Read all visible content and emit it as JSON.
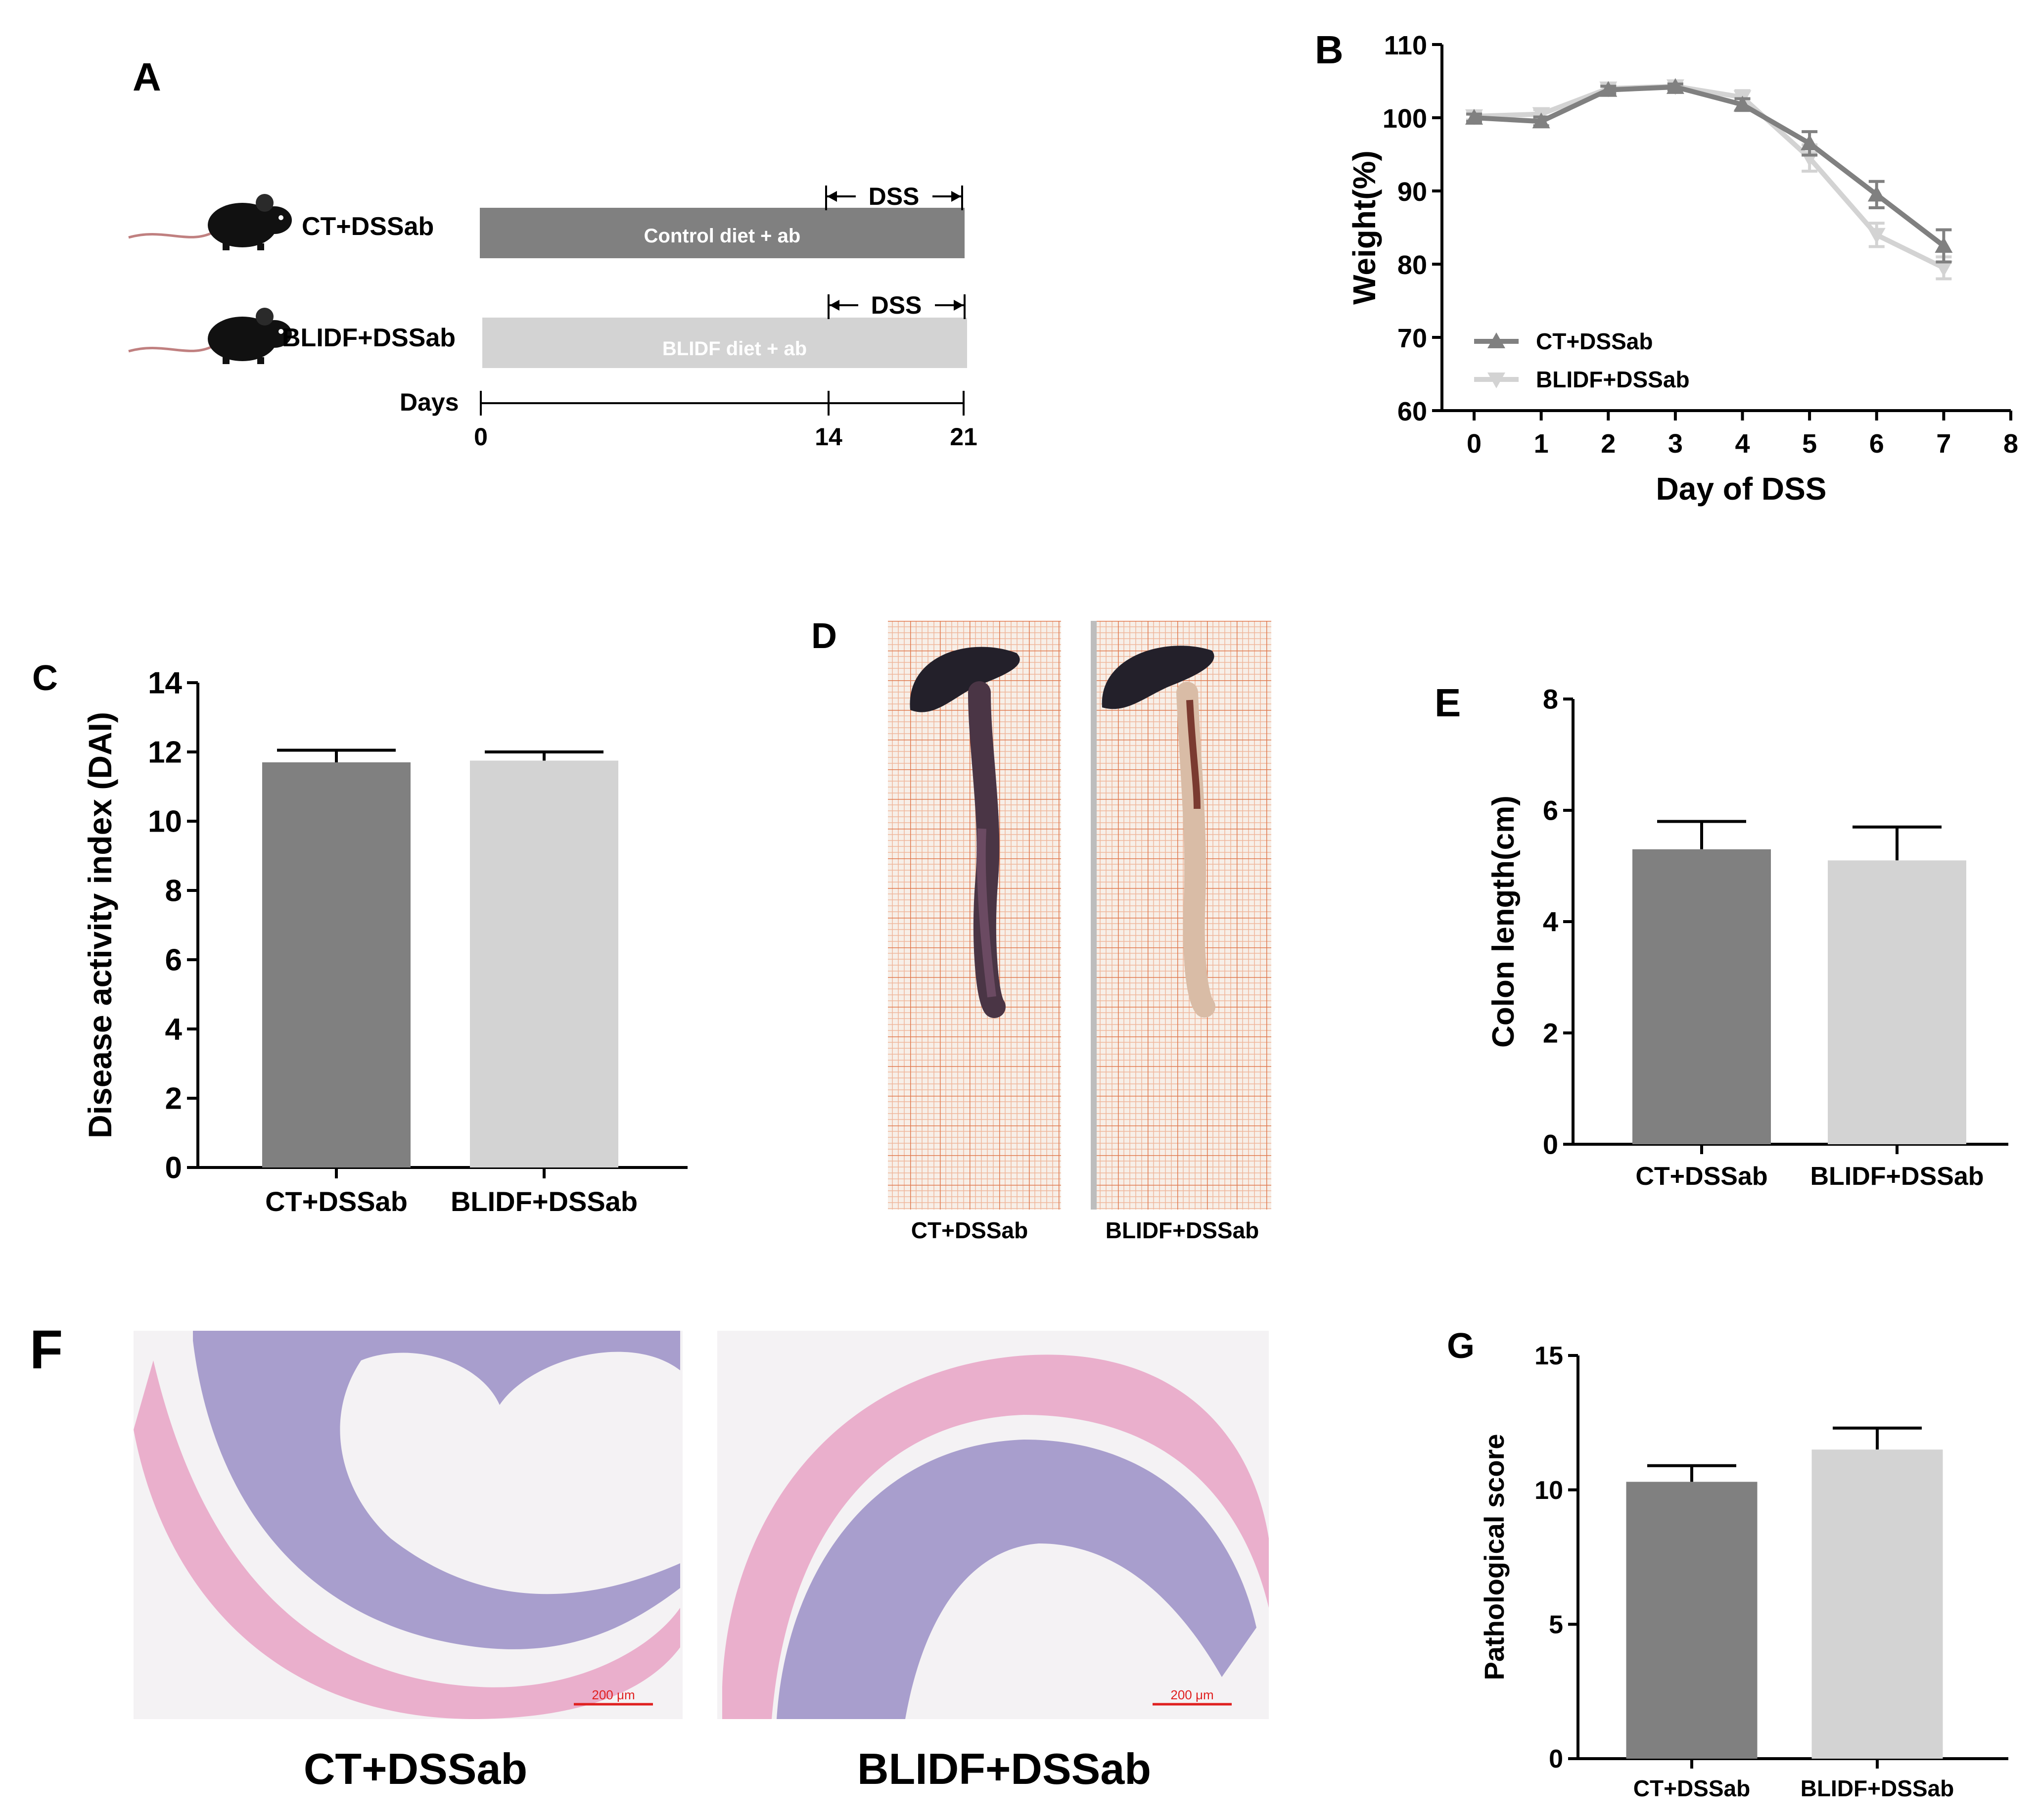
{
  "panels": {
    "A": "A",
    "B": "B",
    "C": "C",
    "D": "D",
    "E": "E",
    "F": "F",
    "G": "G"
  },
  "colors": {
    "dark": "#808080",
    "light": "#d3d3d3",
    "tissue_pink": "#e9a7c8",
    "tissue_purple": "#9a8fc6",
    "grid": "#e07a4f"
  },
  "timeline": {
    "groups": [
      {
        "name": "CT+DSSab",
        "bar_label": "Control diet + ab",
        "dss": "DSS"
      },
      {
        "name": "BLIDF+DSSab",
        "bar_label": "BLIDF diet + ab",
        "dss": "DSS"
      }
    ],
    "days_label": "Days",
    "ticks": [
      "0",
      "14",
      "21"
    ]
  },
  "photo_labels": [
    "CT+DSSab",
    "BLIDF+DSSab"
  ],
  "histology": {
    "labels": [
      "CT+DSSab",
      "BLIDF+DSSab"
    ],
    "scale_bar": "200 μm"
  },
  "chart_data": [
    {
      "panel": "B",
      "type": "line",
      "xlabel": "Day of DSS",
      "ylabel": "Weight(%)",
      "xlim": [
        0,
        8
      ],
      "ylim": [
        60,
        110
      ],
      "x": [
        0,
        1,
        2,
        3,
        4,
        5,
        6,
        7
      ],
      "xticks": [
        0,
        1,
        2,
        3,
        4,
        5,
        6,
        7,
        8
      ],
      "yticks": [
        60,
        70,
        80,
        90,
        100,
        110
      ],
      "legend_position": "bottom-left",
      "series": [
        {
          "name": "CT+DSSab",
          "values": [
            100,
            99.5,
            103.8,
            104.2,
            101.8,
            96.5,
            89.5,
            82.5
          ],
          "errors": [
            0.5,
            0.6,
            0.5,
            0.4,
            0.8,
            1.6,
            1.8,
            2.2
          ],
          "marker": "triangle-up"
        },
        {
          "name": "BLIDF+DSSab",
          "values": [
            100.2,
            100.5,
            104.0,
            104.3,
            102.8,
            94.5,
            84.0,
            79.5
          ],
          "errors": [
            0.5,
            0.6,
            0.5,
            0.4,
            0.9,
            1.8,
            1.6,
            1.5
          ],
          "marker": "triangle-down"
        }
      ]
    },
    {
      "panel": "C",
      "type": "bar",
      "ylabel": "Disease activity index (DAI)",
      "categories": [
        "CT+DSSab",
        "BLIDF+DSSab"
      ],
      "values": [
        11.7,
        11.75
      ],
      "errors": [
        0.35,
        0.25
      ],
      "ylim": [
        0,
        14
      ],
      "yticks": [
        0,
        2,
        4,
        6,
        8,
        10,
        12,
        14
      ]
    },
    {
      "panel": "E",
      "type": "bar",
      "ylabel": "Colon length(cm)",
      "categories": [
        "CT+DSSab",
        "BLIDF+DSSab"
      ],
      "values": [
        5.3,
        5.1
      ],
      "errors": [
        0.5,
        0.6
      ],
      "ylim": [
        0,
        8
      ],
      "yticks": [
        0,
        2,
        4,
        6,
        8
      ]
    },
    {
      "panel": "G",
      "type": "bar",
      "ylabel": "Pathological score",
      "categories": [
        "CT+DSSab",
        "BLIDF+DSSab"
      ],
      "values": [
        10.3,
        11.5
      ],
      "errors": [
        0.6,
        0.8
      ],
      "ylim": [
        0,
        15
      ],
      "yticks": [
        0,
        5,
        10,
        15
      ]
    }
  ]
}
